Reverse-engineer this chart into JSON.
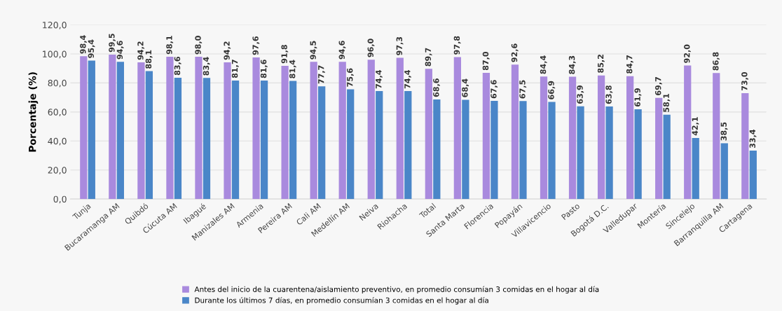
{
  "chart_data": {
    "type": "bar",
    "ylabel": "Porcentaje (%)",
    "categories": [
      "Tunja",
      "Bucaramanga AM",
      "Quibdó",
      "Cúcuta AM",
      "Ibagué",
      "Manizales AM",
      "Armenia",
      "Pereira AM",
      "Cali AM",
      "Medellín AM",
      "Neiva",
      "Riohacha",
      "Total",
      "Santa Marta",
      "Florencia",
      "Popayán",
      "Villavicencio",
      "Pasto",
      "Bogotá D.C.",
      "Valledupar",
      "Montería",
      "Sincelejo",
      "Barranquilla AM",
      "Cartagena"
    ],
    "series": [
      {
        "name": "Antes del inicio de la cuarentena/aislamiento preventivo, en promedio consumían 3 comidas en el hogar al día",
        "color": "#a98ade",
        "values": [
          98.4,
          99.5,
          94.2,
          98.1,
          98.0,
          94.2,
          97.6,
          91.8,
          94.5,
          94.6,
          96.0,
          97.3,
          89.7,
          97.8,
          87.0,
          92.6,
          84.4,
          84.3,
          85.2,
          84.7,
          69.7,
          92.0,
          86.8,
          73.0
        ],
        "value_labels": [
          "98,4",
          "99,5",
          "94,2",
          "98,1",
          "98,0",
          "94,2",
          "97,6",
          "91,8",
          "94,5",
          "94,6",
          "96,0",
          "97,3",
          "89,7",
          "97,8",
          "87,0",
          "92,6",
          "84,4",
          "84,3",
          "85,2",
          "84,7",
          "69,7",
          "92,0",
          "86,8",
          "73,0"
        ]
      },
      {
        "name": "Durante los últimos 7 días, en promedio consumían 3 comidas en el hogar al día",
        "color": "#4a86c8",
        "values": [
          95.4,
          94.6,
          88.1,
          83.6,
          83.4,
          81.7,
          81.6,
          81.4,
          77.7,
          75.6,
          74.4,
          74.4,
          68.6,
          68.4,
          67.6,
          67.5,
          66.9,
          63.9,
          63.8,
          61.9,
          58.1,
          42.1,
          38.5,
          33.4
        ],
        "value_labels": [
          "95,4",
          "94,6",
          "88,1",
          "83,6",
          "83,4",
          "81,7",
          "81,6",
          "81,4",
          "77,7",
          "75,6",
          "74,4",
          "74,4",
          "68,6",
          "68,4",
          "67,6",
          "67,5",
          "66,9",
          "63,9",
          "63,8",
          "61,9",
          "58,1",
          "42,1",
          "38,5",
          "33,4"
        ]
      }
    ],
    "ylim": [
      0,
      120
    ],
    "yticks": [
      {
        "value": 0,
        "label": "0,0"
      },
      {
        "value": 20,
        "label": "20,0"
      },
      {
        "value": 40,
        "label": "40,0"
      },
      {
        "value": 60,
        "label": "60,0"
      },
      {
        "value": 80,
        "label": "80,0"
      },
      {
        "value": 100,
        "label": "100,0"
      },
      {
        "value": 120,
        "label": "120,0"
      }
    ],
    "grid": "y",
    "legend": "bottom"
  }
}
